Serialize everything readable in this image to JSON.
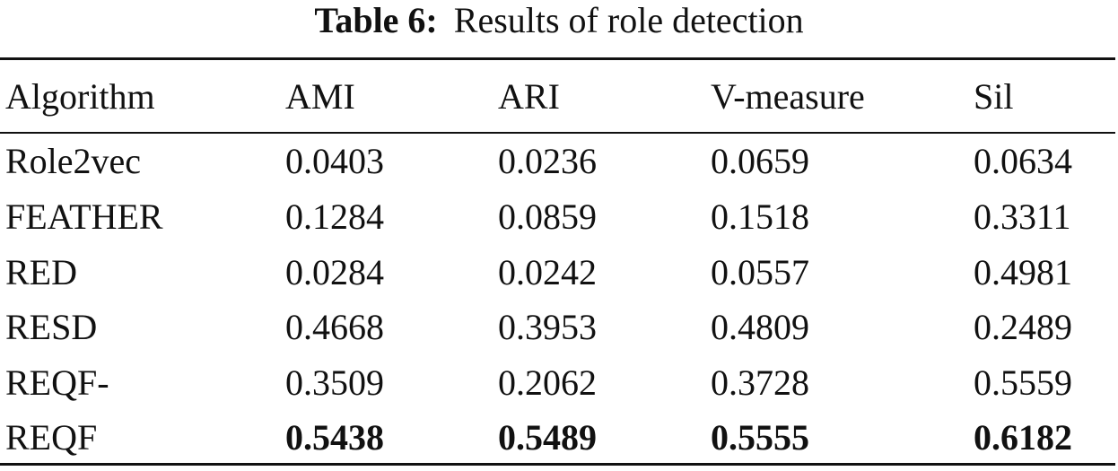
{
  "caption": {
    "label": "Table 6:",
    "text": "Results of role detection"
  },
  "table": {
    "headers": [
      "Algorithm",
      "AMI",
      "ARI",
      "V-measure",
      "Sil"
    ],
    "rows": [
      {
        "algorithm": "Role2vec",
        "ami": "0.0403",
        "ari": "0.0236",
        "v_measure": "0.0659",
        "sil": "0.0634"
      },
      {
        "algorithm": "FEATHER",
        "ami": "0.1284",
        "ari": "0.0859",
        "v_measure": "0.1518",
        "sil": "0.3311"
      },
      {
        "algorithm": "RED",
        "ami": "0.0284",
        "ari": "0.0242",
        "v_measure": "0.0557",
        "sil": "0.4981"
      },
      {
        "algorithm": "RESD",
        "ami": "0.4668",
        "ari": "0.3953",
        "v_measure": "0.4809",
        "sil": "0.2489"
      },
      {
        "algorithm": "REQF-",
        "ami": "0.3509",
        "ari": "0.2062",
        "v_measure": "0.3728",
        "sil": "0.5559"
      },
      {
        "algorithm": "REQF",
        "ami": "0.5438",
        "ari": "0.5489",
        "v_measure": "0.5555",
        "sil": "0.6182"
      }
    ]
  }
}
